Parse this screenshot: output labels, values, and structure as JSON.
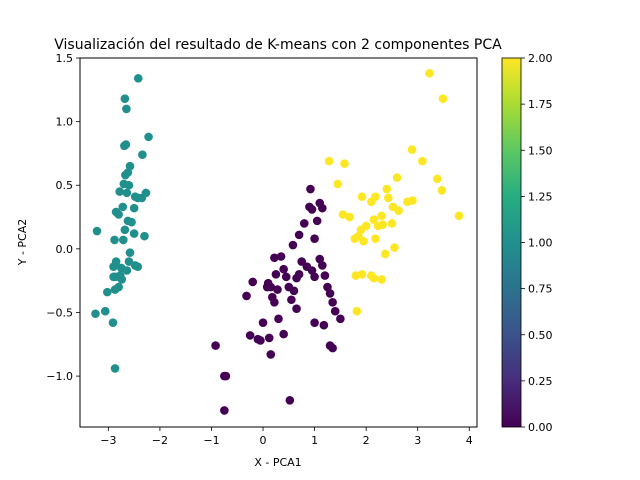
{
  "chart_data": {
    "type": "scatter",
    "title": "Visualización del resultado de K-means con 2 componentes PCA",
    "xlabel": "X - PCA1",
    "ylabel": "Y - PCA2",
    "xlim": [
      -3.55,
      4.15
    ],
    "ylim": [
      -1.4,
      1.5
    ],
    "xticks": [
      "−3",
      "−2",
      "−1",
      "0",
      "1",
      "2",
      "3",
      "4"
    ],
    "xtick_values": [
      -3,
      -2,
      -1,
      0,
      1,
      2,
      3,
      4
    ],
    "yticks": [
      "−1.0",
      "−0.5",
      "0.0",
      "0.5",
      "1.0",
      "1.5"
    ],
    "ytick_values": [
      -1.0,
      -0.5,
      0.0,
      0.5,
      1.0,
      1.5
    ],
    "colorbar": {
      "colormap": "viridis",
      "range": [
        0,
        2
      ],
      "ticks": [
        "0.00",
        "0.25",
        "0.50",
        "0.75",
        "1.00",
        "1.25",
        "1.50",
        "1.75",
        "2.00"
      ],
      "tick_values": [
        0,
        0.25,
        0.5,
        0.75,
        1.0,
        1.25,
        1.5,
        1.75,
        2.0
      ]
    },
    "clusters": [
      {
        "label": 0,
        "color": "#440154",
        "points": [
          [
            -0.75,
            -1.27
          ],
          [
            0.52,
            -1.19
          ],
          [
            -0.92,
            -0.76
          ],
          [
            -0.72,
            -1.0
          ],
          [
            -0.75,
            -1.0
          ],
          [
            -0.32,
            -0.37
          ],
          [
            -0.2,
            -0.26
          ],
          [
            -0.25,
            -0.68
          ],
          [
            -0.1,
            -0.71
          ],
          [
            -0.05,
            -0.72
          ],
          [
            0.0,
            -0.58
          ],
          [
            0.12,
            -0.7
          ],
          [
            0.15,
            -0.83
          ],
          [
            0.3,
            -0.55
          ],
          [
            0.4,
            -0.67
          ],
          [
            0.08,
            -0.3
          ],
          [
            0.15,
            -0.3
          ],
          [
            0.18,
            -0.38
          ],
          [
            0.22,
            -0.42
          ],
          [
            0.28,
            -0.32
          ],
          [
            0.35,
            -0.06
          ],
          [
            0.4,
            -0.16
          ],
          [
            0.45,
            -0.22
          ],
          [
            0.55,
            -0.4
          ],
          [
            0.6,
            -0.33
          ],
          [
            0.65,
            -0.47
          ],
          [
            0.7,
            -0.2
          ],
          [
            0.75,
            -0.1
          ],
          [
            0.85,
            -0.14
          ],
          [
            0.95,
            -0.17
          ],
          [
            1.0,
            -0.22
          ],
          [
            1.1,
            -0.08
          ],
          [
            1.15,
            -0.13
          ],
          [
            1.2,
            -0.21
          ],
          [
            1.25,
            -0.3
          ],
          [
            1.3,
            -0.35
          ],
          [
            1.35,
            -0.42
          ],
          [
            1.4,
            -0.49
          ],
          [
            1.5,
            -0.55
          ],
          [
            1.18,
            -0.6
          ],
          [
            1.0,
            -0.58
          ],
          [
            0.58,
            0.03
          ],
          [
            0.7,
            0.11
          ],
          [
            0.8,
            0.2
          ],
          [
            0.9,
            0.33
          ],
          [
            0.95,
            0.31
          ],
          [
            1.05,
            0.22
          ],
          [
            1.15,
            0.32
          ],
          [
            1.0,
            0.08
          ],
          [
            0.92,
            0.47
          ],
          [
            0.22,
            -0.07
          ],
          [
            0.1,
            -0.27
          ],
          [
            0.25,
            -0.2
          ],
          [
            1.3,
            -0.76
          ],
          [
            1.35,
            -0.78
          ],
          [
            0.5,
            -0.3
          ],
          [
            1.1,
            0.36
          ],
          [
            0.65,
            -0.23
          ]
        ]
      },
      {
        "label": 1,
        "color": "#21908d",
        "points": [
          [
            -2.42,
            1.34
          ],
          [
            -2.68,
            1.18
          ],
          [
            -2.65,
            1.1
          ],
          [
            -2.66,
            0.82
          ],
          [
            -2.69,
            0.81
          ],
          [
            -2.22,
            0.88
          ],
          [
            -2.34,
            0.74
          ],
          [
            -2.58,
            0.65
          ],
          [
            -2.62,
            0.6
          ],
          [
            -2.67,
            0.58
          ],
          [
            -2.7,
            0.51
          ],
          [
            -2.6,
            0.5
          ],
          [
            -2.78,
            0.45
          ],
          [
            -2.64,
            0.44
          ],
          [
            -2.48,
            0.41
          ],
          [
            -2.43,
            0.4
          ],
          [
            -2.35,
            0.4
          ],
          [
            -2.27,
            0.44
          ],
          [
            -2.5,
            0.32
          ],
          [
            -2.72,
            0.33
          ],
          [
            -2.85,
            0.29
          ],
          [
            -2.8,
            0.27
          ],
          [
            -2.55,
            0.21
          ],
          [
            -2.62,
            0.22
          ],
          [
            -2.68,
            0.15
          ],
          [
            -2.5,
            0.12
          ],
          [
            -2.3,
            0.1
          ],
          [
            -2.88,
            0.07
          ],
          [
            -2.71,
            0.07
          ],
          [
            -3.22,
            0.14
          ],
          [
            -2.58,
            -0.03
          ],
          [
            -2.85,
            -0.1
          ],
          [
            -2.9,
            -0.14
          ],
          [
            -2.75,
            -0.15
          ],
          [
            -2.64,
            -0.17
          ],
          [
            -2.48,
            -0.13
          ],
          [
            -2.43,
            -0.14
          ],
          [
            -2.77,
            -0.21
          ],
          [
            -2.86,
            -0.22
          ],
          [
            -2.9,
            -0.22
          ],
          [
            -2.74,
            -0.24
          ],
          [
            -2.8,
            -0.3
          ],
          [
            -3.02,
            -0.34
          ],
          [
            -2.87,
            -0.32
          ],
          [
            -3.06,
            -0.49
          ],
          [
            -3.25,
            -0.51
          ],
          [
            -2.91,
            -0.58
          ],
          [
            -2.87,
            -0.94
          ],
          [
            -2.6,
            -0.1
          ]
        ]
      },
      {
        "label": 2,
        "color": "#fde725",
        "points": [
          [
            3.23,
            1.38
          ],
          [
            3.49,
            1.18
          ],
          [
            2.89,
            0.78
          ],
          [
            3.09,
            0.69
          ],
          [
            1.28,
            0.69
          ],
          [
            1.58,
            0.67
          ],
          [
            3.38,
            0.55
          ],
          [
            2.6,
            0.56
          ],
          [
            3.47,
            0.46
          ],
          [
            2.4,
            0.47
          ],
          [
            1.45,
            0.51
          ],
          [
            2.18,
            0.41
          ],
          [
            1.92,
            0.41
          ],
          [
            2.43,
            0.4
          ],
          [
            2.1,
            0.37
          ],
          [
            2.9,
            0.38
          ],
          [
            2.8,
            0.37
          ],
          [
            3.8,
            0.26
          ],
          [
            2.63,
            0.3
          ],
          [
            2.52,
            0.33
          ],
          [
            2.5,
            0.2
          ],
          [
            2.3,
            0.26
          ],
          [
            1.55,
            0.27
          ],
          [
            1.68,
            0.25
          ],
          [
            2.23,
            0.18
          ],
          [
            2.15,
            0.23
          ],
          [
            2.0,
            0.18
          ],
          [
            1.9,
            0.15
          ],
          [
            2.32,
            0.19
          ],
          [
            1.78,
            0.08
          ],
          [
            1.85,
            0.1
          ],
          [
            1.95,
            0.06
          ],
          [
            2.18,
            0.08
          ],
          [
            2.37,
            -0.04
          ],
          [
            2.55,
            0.01
          ],
          [
            1.92,
            -0.2
          ],
          [
            1.8,
            -0.21
          ],
          [
            2.1,
            -0.21
          ],
          [
            2.15,
            -0.23
          ],
          [
            2.3,
            -0.24
          ],
          [
            1.82,
            -0.49
          ]
        ]
      }
    ]
  }
}
